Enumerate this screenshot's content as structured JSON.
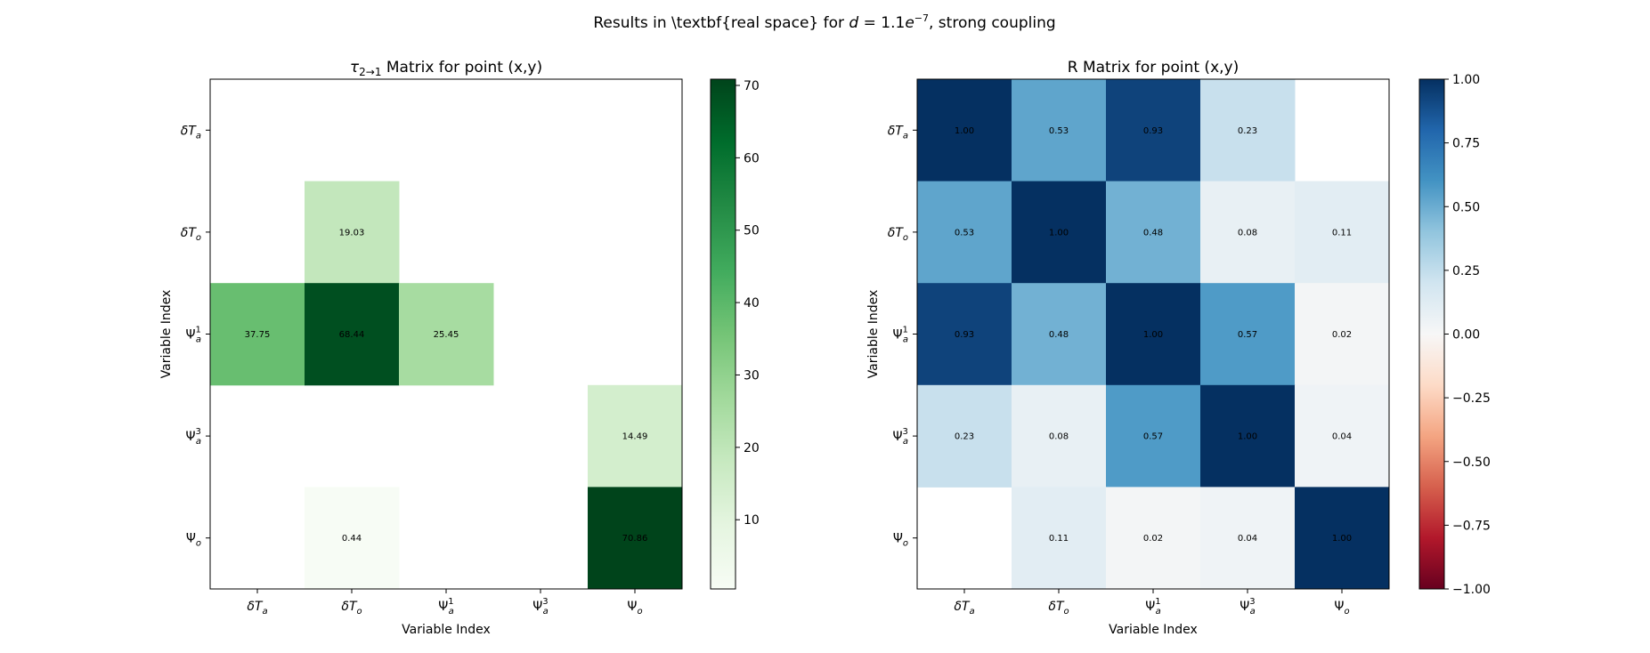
{
  "suptitle": {
    "prefix": "Results in \\textbf{real space} for ",
    "d_var": "d",
    "eq": " = 1.1",
    "e_var": "e",
    "exponent": "−7",
    "suffix": ", strong coupling"
  },
  "colors": {
    "greens": [
      "#f7fcf5",
      "#e5f5e0",
      "#c7e9c0",
      "#a1d99b",
      "#74c476",
      "#41ab5d",
      "#238b45",
      "#006d2c",
      "#00441b"
    ],
    "rdbu": [
      "#67001f",
      "#b2182b",
      "#d6604d",
      "#f4a582",
      "#fddbc7",
      "#f7f7f7",
      "#d1e5f0",
      "#92c5de",
      "#4393c3",
      "#2166ac",
      "#053061"
    ]
  },
  "chart_data": [
    {
      "type": "heatmap",
      "title_parts": {
        "sym": "τ",
        "sub": "2→1",
        "rest": " Matrix for point (x,y)"
      },
      "xlabel": "Variable Index",
      "ylabel": "Variable Index",
      "labels": [
        {
          "base": "δT",
          "sub": "a",
          "sup": ""
        },
        {
          "base": "δT",
          "sub": "o",
          "sup": ""
        },
        {
          "base": "Ψ",
          "sub": "a",
          "sup": "1"
        },
        {
          "base": "Ψ",
          "sub": "a",
          "sup": "3"
        },
        {
          "base": "Ψ",
          "sub": "o",
          "sup": ""
        }
      ],
      "matrix": [
        [
          null,
          null,
          null,
          null,
          null
        ],
        [
          null,
          19.03,
          null,
          null,
          null
        ],
        [
          37.75,
          68.44,
          25.45,
          null,
          null
        ],
        [
          null,
          null,
          null,
          null,
          14.49
        ],
        [
          null,
          0.44,
          null,
          null,
          70.86
        ]
      ],
      "cell_labels": [
        [
          "",
          "",
          "",
          "",
          ""
        ],
        [
          "",
          "19.03",
          "",
          "",
          ""
        ],
        [
          "37.75",
          "68.44",
          "25.45",
          "",
          ""
        ],
        [
          "",
          "",
          "",
          "",
          "14.49"
        ],
        [
          "",
          "0.44",
          "",
          "",
          "70.86"
        ]
      ],
      "cmap": "Greens",
      "vmin": 0.44,
      "vmax": 70.86,
      "colorbar_ticks": [
        10,
        20,
        30,
        40,
        50,
        60,
        70
      ],
      "colorbar_tick_labels": [
        "10",
        "20",
        "30",
        "40",
        "50",
        "60",
        "70"
      ]
    },
    {
      "type": "heatmap",
      "title_parts": {
        "sym": "",
        "sub": "",
        "rest": "R Matrix for point (x,y)"
      },
      "xlabel": "Variable Index",
      "ylabel": "Variable Index",
      "labels": [
        {
          "base": "δT",
          "sub": "a",
          "sup": ""
        },
        {
          "base": "δT",
          "sub": "o",
          "sup": ""
        },
        {
          "base": "Ψ",
          "sub": "a",
          "sup": "1"
        },
        {
          "base": "Ψ",
          "sub": "a",
          "sup": "3"
        },
        {
          "base": "Ψ",
          "sub": "o",
          "sup": ""
        }
      ],
      "matrix": [
        [
          1.0,
          0.53,
          0.93,
          0.23,
          null
        ],
        [
          0.53,
          1.0,
          0.48,
          0.08,
          0.11
        ],
        [
          0.93,
          0.48,
          1.0,
          0.57,
          0.02
        ],
        [
          0.23,
          0.08,
          0.57,
          1.0,
          0.04
        ],
        [
          null,
          0.11,
          0.02,
          0.04,
          1.0
        ]
      ],
      "cell_labels": [
        [
          "1.00",
          "0.53",
          "0.93",
          "0.23",
          ""
        ],
        [
          "0.53",
          "1.00",
          "0.48",
          "0.08",
          "0.11"
        ],
        [
          "0.93",
          "0.48",
          "1.00",
          "0.57",
          "0.02"
        ],
        [
          "0.23",
          "0.08",
          "0.57",
          "1.00",
          "0.04"
        ],
        [
          "",
          "0.11",
          "0.02",
          "0.04",
          "1.00"
        ]
      ],
      "cmap": "RdBu",
      "vmin": -1,
      "vmax": 1,
      "colorbar_ticks": [
        1.0,
        0.75,
        0.5,
        0.25,
        0.0,
        -0.25,
        -0.5,
        -0.75,
        -1.0
      ],
      "colorbar_tick_labels": [
        "1.00",
        "0.75",
        "0.50",
        "0.25",
        "0.00",
        "−0.25",
        "−0.50",
        "−0.75",
        "−1.00"
      ]
    }
  ]
}
